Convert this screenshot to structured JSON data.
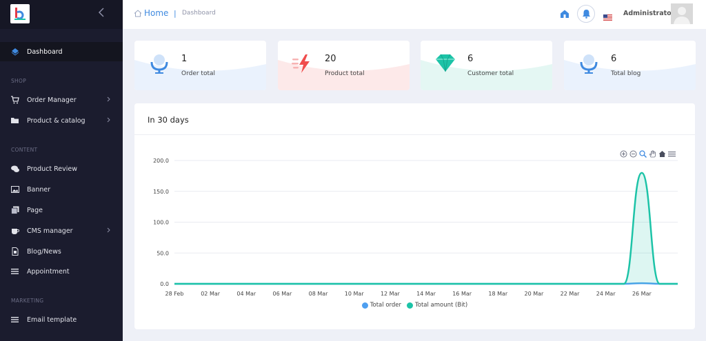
{
  "sidebar": {
    "items": [
      {
        "label": "Dashboard",
        "icon": "layers-icon"
      },
      {
        "label": "Order Manager",
        "icon": "cart-icon"
      },
      {
        "label": "Product & catalog",
        "icon": "folder-icon"
      },
      {
        "label": "Product Review",
        "icon": "comments-icon"
      },
      {
        "label": "Banner",
        "icon": "image-icon"
      },
      {
        "label": "Page",
        "icon": "copy-icon"
      },
      {
        "label": "CMS manager",
        "icon": "coffee-icon"
      },
      {
        "label": "Blog/News",
        "icon": "file-icon"
      },
      {
        "label": "Appointment",
        "icon": "bars-icon"
      },
      {
        "label": "Email template",
        "icon": "bars-icon"
      }
    ],
    "sections": {
      "shop": "SHOP",
      "content": "CONTENT",
      "marketing": "MARKETING"
    }
  },
  "header": {
    "home": "Home",
    "separator": "|",
    "current": "Dashboard",
    "user": "Administrator"
  },
  "stats": [
    {
      "value": "1",
      "label": "Order total",
      "icon": "microphone-icon",
      "color": "#3f8ae0"
    },
    {
      "value": "20",
      "label": "Product total",
      "icon": "lightning-icon",
      "color": "#f04d4d"
    },
    {
      "value": "6",
      "label": "Customer total",
      "icon": "diamond-icon",
      "color": "#1cc3a7"
    },
    {
      "value": "6",
      "label": "Total blog",
      "icon": "microphone-icon",
      "color": "#3f8ae0"
    }
  ],
  "panel": {
    "title": "In 30 days"
  },
  "chart_data": {
    "type": "area",
    "categories": [
      "28 Feb",
      "01 Mar",
      "02 Mar",
      "03 Mar",
      "04 Mar",
      "05 Mar",
      "06 Mar",
      "07 Mar",
      "08 Mar",
      "09 Mar",
      "10 Mar",
      "11 Mar",
      "12 Mar",
      "13 Mar",
      "14 Mar",
      "15 Mar",
      "16 Mar",
      "17 Mar",
      "18 Mar",
      "19 Mar",
      "20 Mar",
      "21 Mar",
      "22 Mar",
      "23 Mar",
      "24 Mar",
      "25 Mar",
      "26 Mar",
      "27 Mar",
      "28 Mar"
    ],
    "tick_labels": [
      "28 Feb",
      "02 Mar",
      "04 Mar",
      "06 Mar",
      "08 Mar",
      "10 Mar",
      "12 Mar",
      "14 Mar",
      "16 Mar",
      "18 Mar",
      "20 Mar",
      "22 Mar",
      "24 Mar",
      "26 Mar"
    ],
    "y_ticks": [
      "0.0",
      "50.0",
      "100.0",
      "150.0",
      "200.0"
    ],
    "ylim": [
      0,
      200
    ],
    "series": [
      {
        "name": "Total order",
        "color": "#4e9ff0",
        "values": [
          0,
          0,
          0,
          0,
          0,
          0,
          0,
          0,
          0,
          0,
          0,
          0,
          0,
          0,
          0,
          0,
          0,
          0,
          0,
          0,
          0,
          0,
          0,
          0,
          0,
          0,
          1,
          0,
          0
        ]
      },
      {
        "name": "Total amount (Bit)",
        "color": "#1cc3a7",
        "values": [
          0,
          0,
          0,
          0,
          0,
          0,
          0,
          0,
          0,
          0,
          0,
          0,
          0,
          0,
          0,
          0,
          0,
          0,
          0,
          0,
          0,
          0,
          0,
          0,
          0,
          0,
          180,
          0,
          0
        ]
      }
    ],
    "grid": true,
    "legend_position": "bottom"
  }
}
